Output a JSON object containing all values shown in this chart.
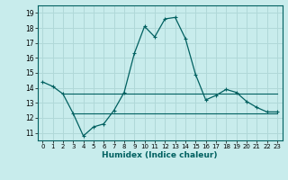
{
  "xlabel": "Humidex (Indice chaleur)",
  "background_color": "#c8ecec",
  "grid_color": "#b0d8d8",
  "line_color": "#006060",
  "xlim": [
    -0.5,
    23.5
  ],
  "ylim": [
    10.5,
    19.5
  ],
  "xticks": [
    0,
    1,
    2,
    3,
    4,
    5,
    6,
    7,
    8,
    9,
    10,
    11,
    12,
    13,
    14,
    15,
    16,
    17,
    18,
    19,
    20,
    21,
    22,
    23
  ],
  "yticks": [
    11,
    12,
    13,
    14,
    15,
    16,
    17,
    18,
    19
  ],
  "series1_x": [
    0,
    1,
    2,
    3,
    4,
    5,
    6,
    7,
    8,
    9,
    10,
    11,
    12,
    13,
    14,
    15,
    16,
    17,
    18,
    19,
    20,
    21,
    22,
    23
  ],
  "series1_y": [
    14.4,
    14.1,
    13.6,
    12.3,
    10.8,
    11.4,
    11.6,
    12.5,
    13.7,
    16.3,
    18.1,
    17.4,
    18.6,
    18.7,
    17.3,
    14.9,
    13.2,
    13.5,
    13.9,
    13.7,
    13.1,
    12.7,
    12.4,
    12.4
  ],
  "series2_x": [
    2,
    3,
    4,
    5,
    6,
    7,
    8,
    9,
    10,
    11,
    12,
    13,
    14,
    15,
    16,
    17,
    18,
    19,
    20,
    21,
    22,
    23
  ],
  "series2_y": [
    13.6,
    13.6,
    13.6,
    13.6,
    13.6,
    13.6,
    13.6,
    13.6,
    13.6,
    13.6,
    13.6,
    13.6,
    13.6,
    13.6,
    13.6,
    13.6,
    13.6,
    13.6,
    13.6,
    13.6,
    13.6,
    13.6
  ],
  "series3_x": [
    3,
    4,
    5,
    6,
    7,
    8,
    9,
    10,
    11,
    12,
    13,
    14,
    15,
    16,
    17,
    18,
    19,
    20,
    21,
    22,
    23
  ],
  "series3_y": [
    12.3,
    12.3,
    12.3,
    12.3,
    12.3,
    12.3,
    12.3,
    12.3,
    12.3,
    12.3,
    12.3,
    12.3,
    12.3,
    12.3,
    12.3,
    12.3,
    12.3,
    12.3,
    12.3,
    12.3,
    12.3
  ]
}
